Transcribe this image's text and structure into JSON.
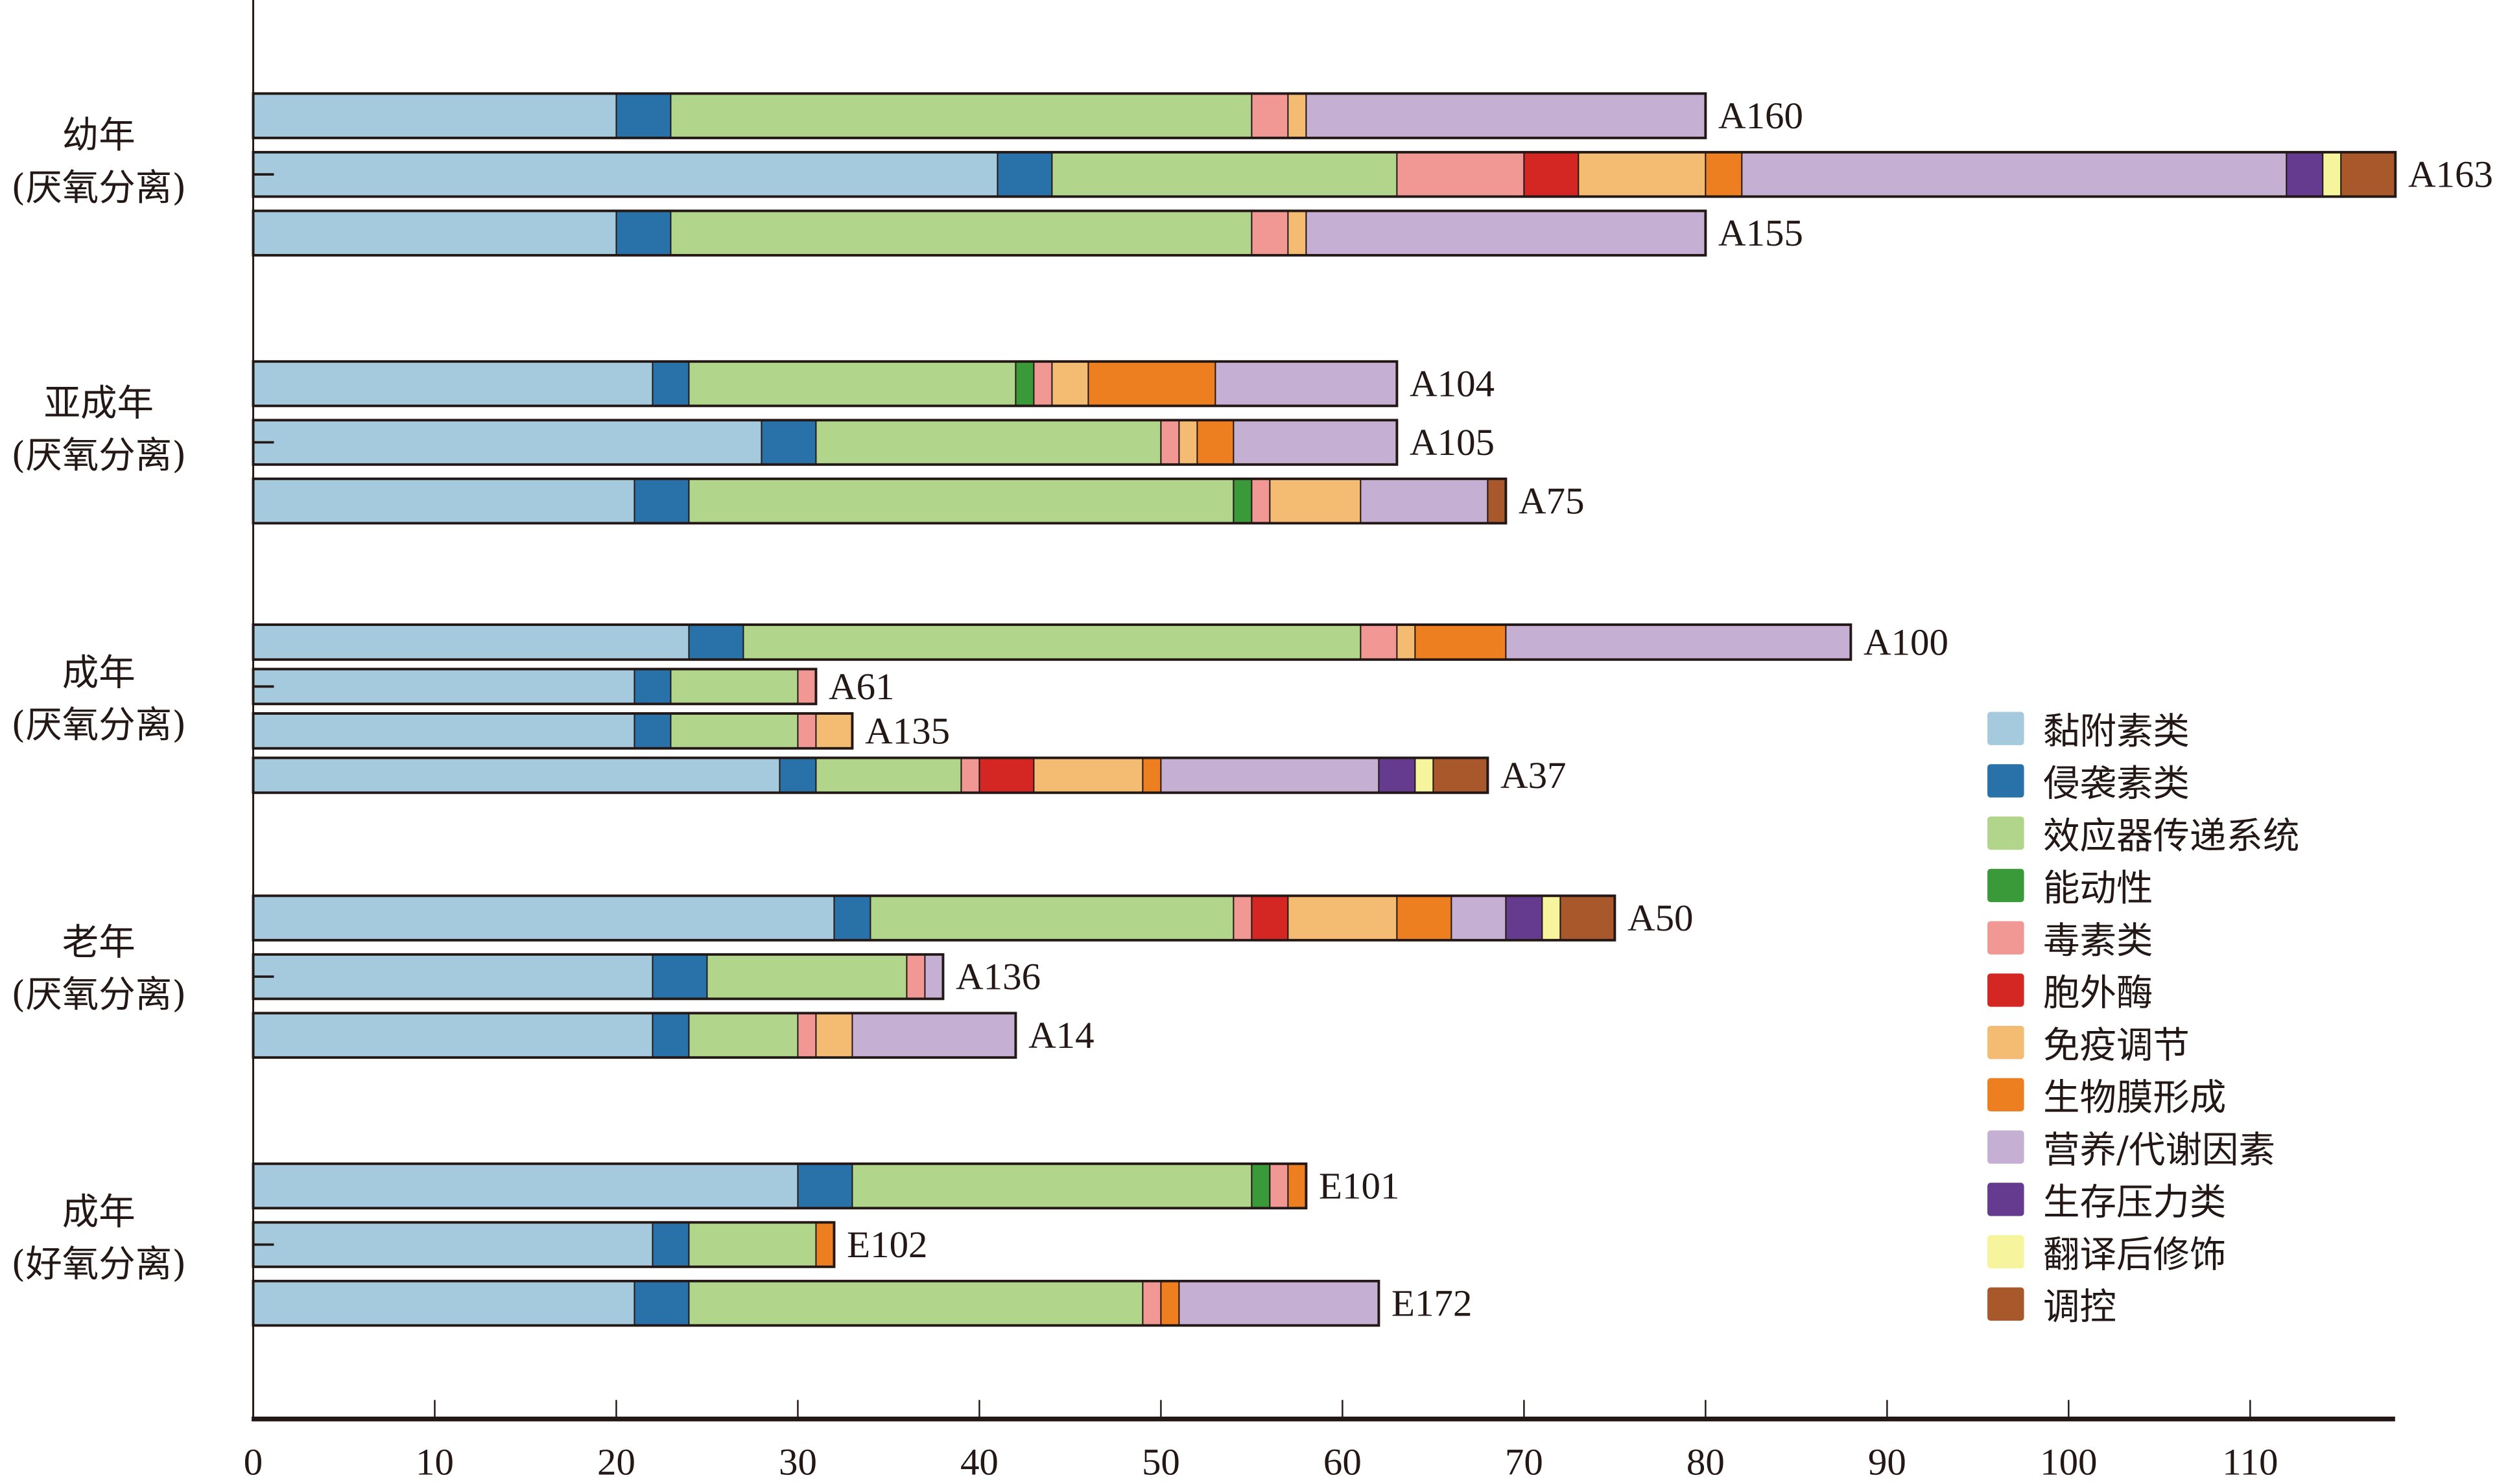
{
  "chart_data": {
    "type": "bar",
    "orientation": "horizontal",
    "stacked": true,
    "title": "",
    "xlabel": "",
    "ylabel": "",
    "xlim": [
      0,
      118
    ],
    "x_ticks": [
      0,
      10,
      20,
      30,
      40,
      50,
      60,
      70,
      80,
      90,
      100,
      110
    ],
    "grid": false,
    "legend_position": "bottom-right",
    "categories_legend": [
      {
        "name": "黏附素类",
        "color": "#a6cadd"
      },
      {
        "name": "侵袭素类",
        "color": "#2872a9"
      },
      {
        "name": "效应器传递系统",
        "color": "#b0d58b"
      },
      {
        "name": "能动性",
        "color": "#3a9a3a"
      },
      {
        "name": "毒素类",
        "color": "#f19895"
      },
      {
        "name": "胞外酶",
        "color": "#d42623"
      },
      {
        "name": "免疫调节",
        "color": "#f4bc72"
      },
      {
        "name": "生物膜形成",
        "color": "#ee7f20"
      },
      {
        "name": "营养/代谢因素",
        "color": "#c5b0d4"
      },
      {
        "name": "生存压力类",
        "color": "#653b8f"
      },
      {
        "name": "翻译后修饰",
        "color": "#f7f49e"
      },
      {
        "name": "调控",
        "color": "#a8582b"
      }
    ],
    "groups": [
      {
        "label_line1": "幼年",
        "label_line2": "(厌氧分离)",
        "bars": [
          {
            "name": "A160",
            "values": [
              20,
              3,
              32,
              0,
              2,
              0,
              1,
              0,
              22,
              0,
              0,
              0
            ]
          },
          {
            "name": "A163",
            "values": [
              41,
              3,
              19,
              0,
              7,
              3,
              7,
              2,
              30,
              2,
              1,
              3
            ]
          },
          {
            "name": "A155",
            "values": [
              20,
              3,
              32,
              0,
              2,
              0,
              1,
              0,
              22,
              0,
              0,
              0
            ]
          }
        ]
      },
      {
        "label_line1": "亚成年",
        "label_line2": "(厌氧分离)",
        "bars": [
          {
            "name": "A104",
            "values": [
              22,
              2,
              18,
              1,
              1,
              0,
              2,
              7,
              10,
              0,
              0,
              0
            ]
          },
          {
            "name": "A105",
            "values": [
              28,
              3,
              19,
              0,
              1,
              0,
              1,
              2,
              9,
              0,
              0,
              0
            ]
          },
          {
            "name": "A75",
            "values": [
              21,
              3,
              30,
              1,
              1,
              0,
              5,
              0,
              7,
              0,
              0,
              1
            ]
          }
        ]
      },
      {
        "label_line1": "成年",
        "label_line2": "(厌氧分离)",
        "bars": [
          {
            "name": "A100",
            "values": [
              24,
              3,
              34,
              0,
              2,
              0,
              1,
              5,
              19,
              0,
              0,
              0
            ]
          },
          {
            "name": "A61",
            "values": [
              21,
              2,
              7,
              0,
              1,
              0,
              0,
              0,
              0,
              0,
              0,
              0
            ]
          },
          {
            "name": "A135",
            "values": [
              21,
              2,
              7,
              0,
              1,
              0,
              2,
              0,
              0,
              0,
              0,
              0
            ]
          },
          {
            "name": "A37",
            "values": [
              29,
              2,
              8,
              0,
              1,
              3,
              6,
              1,
              12,
              2,
              1,
              3
            ]
          }
        ]
      },
      {
        "label_line1": "老年",
        "label_line2": "(厌氧分离)",
        "bars": [
          {
            "name": "A50",
            "values": [
              32,
              2,
              20,
              0,
              1,
              2,
              6,
              3,
              3,
              2,
              1,
              3
            ]
          },
          {
            "name": "A136",
            "values": [
              22,
              3,
              11,
              0,
              1,
              0,
              0,
              0,
              1,
              0,
              0,
              0
            ]
          },
          {
            "name": "A14",
            "values": [
              22,
              2,
              6,
              0,
              1,
              0,
              2,
              0,
              9,
              0,
              0,
              0
            ]
          }
        ]
      },
      {
        "label_line1": "成年",
        "label_line2": "(好氧分离)",
        "bars": [
          {
            "name": "E101",
            "values": [
              30,
              3,
              22,
              1,
              1,
              0,
              0,
              1,
              0,
              0,
              0,
              0
            ]
          },
          {
            "name": "E102",
            "values": [
              22,
              2,
              7,
              0,
              0,
              0,
              0,
              1,
              0,
              0,
              0,
              0
            ]
          },
          {
            "name": "E172",
            "values": [
              21,
              3,
              25,
              0,
              1,
              0,
              0,
              1,
              11,
              0,
              0,
              0
            ]
          }
        ]
      }
    ]
  }
}
